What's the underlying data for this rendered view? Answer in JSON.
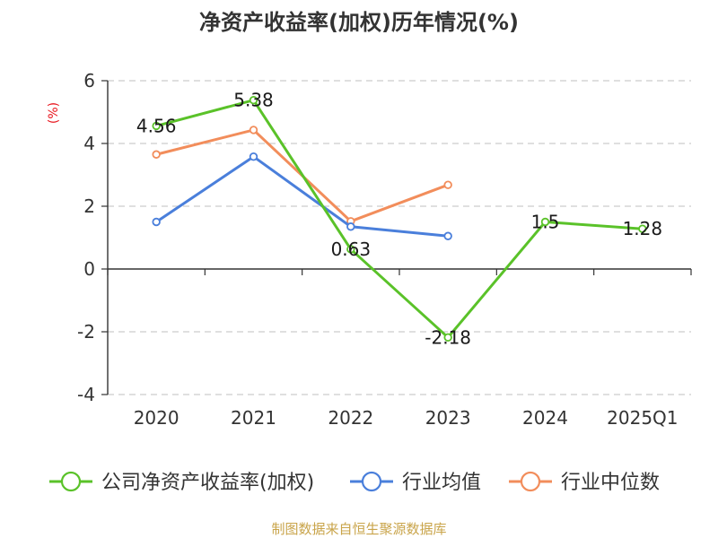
{
  "chart_data": {
    "type": "line",
    "title": "净资产收益率(加权)历年情况(%)",
    "ylabel": "(%)",
    "xlabel": "",
    "categories": [
      "2020",
      "2021",
      "2022",
      "2023",
      "2024",
      "2025Q1"
    ],
    "ylim": [
      -4,
      6
    ],
    "yticks": [
      -4,
      -2,
      0,
      2,
      4,
      6
    ],
    "grid": true,
    "legend_position": "bottom",
    "series": [
      {
        "name": "公司净资产收益率(加权)",
        "color": "#5ac229",
        "values": [
          4.56,
          5.38,
          0.63,
          -2.18,
          1.5,
          1.28
        ],
        "labels": [
          "4.56",
          "5.38",
          "0.63",
          "-2.18",
          "1.5",
          "1.28"
        ]
      },
      {
        "name": "行业均值",
        "color": "#4a7fdb",
        "values": [
          1.5,
          3.58,
          1.35,
          1.05,
          null,
          null
        ]
      },
      {
        "name": "行业中位数",
        "color": "#f28d5b",
        "values": [
          3.65,
          4.43,
          1.52,
          2.68,
          null,
          null
        ]
      }
    ],
    "source": "制图数据来自恒生聚源数据库"
  }
}
